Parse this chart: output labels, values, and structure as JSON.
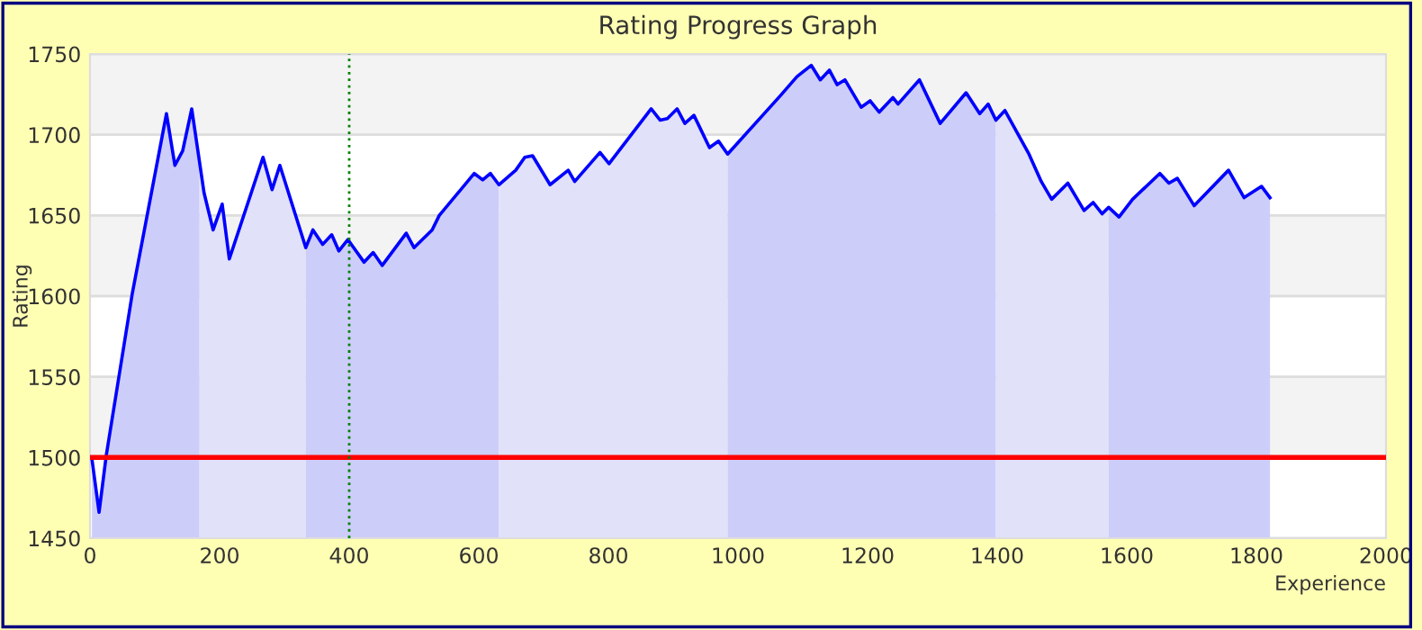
{
  "chart_data": {
    "type": "line",
    "title": "Rating Progress Graph",
    "xlabel": "Experience",
    "ylabel": "Rating",
    "xlim": [
      0,
      2000
    ],
    "xticks": [
      0,
      200,
      400,
      600,
      800,
      1000,
      1200,
      1400,
      1600,
      1800,
      2000
    ],
    "ylim": [
      1450,
      1750
    ],
    "yticks": [
      1450,
      1500,
      1550,
      1600,
      1650,
      1700,
      1750
    ],
    "grid": "y",
    "bands": [
      {
        "axis": "y",
        "from": 1500,
        "to": 1550,
        "color": "#f3f3f3"
      },
      {
        "axis": "y",
        "from": 1600,
        "to": 1650,
        "color": "#f3f3f3"
      },
      {
        "axis": "y",
        "from": 1700,
        "to": 1750,
        "color": "#f3f3f3"
      }
    ],
    "ref_lines": [
      {
        "axis": "y",
        "value": 1500,
        "color": "#ff0000",
        "line_style": "solid"
      },
      {
        "axis": "x",
        "value": 400,
        "color": "#008000",
        "line_style": "dotted"
      }
    ],
    "series": [
      {
        "type": "area",
        "color": "#cdcdfa",
        "x": [
          3,
          14,
          25,
          65,
          118,
          131,
          143,
          157,
          169
        ],
        "values": [
          1499,
          1466,
          1501,
          1601,
          1713,
          1681,
          1690,
          1716,
          1683
        ]
      },
      {
        "type": "area",
        "color": "#e1e1fa",
        "x": [
          169,
          176,
          190,
          204,
          215,
          267,
          281,
          293,
          333
        ],
        "values": [
          1683,
          1664,
          1641,
          1657,
          1623,
          1686,
          1666,
          1681,
          1630
        ]
      },
      {
        "type": "area",
        "color": "#cdcdfa",
        "x": [
          333,
          344,
          359,
          373,
          384,
          398,
          423,
          437,
          451,
          488,
          500,
          528,
          539,
          593,
          606,
          618,
          631
        ],
        "values": [
          1630,
          1641,
          1632,
          1638,
          1628,
          1635,
          1621,
          1627,
          1619,
          1639,
          1630,
          1641,
          1650,
          1676,
          1672,
          1676,
          1669
        ]
      },
      {
        "type": "area",
        "color": "#e1e1fa",
        "x": [
          631,
          657,
          671,
          683,
          710,
          738,
          748,
          787,
          801,
          866,
          880,
          891,
          906,
          918,
          932,
          956,
          970,
          984
        ],
        "values": [
          1669,
          1678,
          1686,
          1687,
          1669,
          1678,
          1671,
          1689,
          1682,
          1716,
          1709,
          1710,
          1716,
          1707,
          1712,
          1692,
          1696,
          1688
        ]
      },
      {
        "type": "area",
        "color": "#cdcdfa",
        "x": [
          984,
          1065,
          1091,
          1113,
          1127,
          1141,
          1153,
          1165,
          1190,
          1204,
          1218,
          1239,
          1247,
          1280,
          1312,
          1352,
          1373,
          1386,
          1398
        ],
        "values": [
          1688,
          1724,
          1736,
          1743,
          1734,
          1740,
          1731,
          1734,
          1717,
          1721,
          1714,
          1723,
          1719,
          1734,
          1707,
          1726,
          1713,
          1719,
          1709
        ]
      },
      {
        "type": "area",
        "color": "#e1e1fa",
        "x": [
          1398,
          1412,
          1449,
          1468,
          1484,
          1509,
          1534,
          1548,
          1562,
          1572
        ],
        "values": [
          1709,
          1715,
          1688,
          1671,
          1660,
          1670,
          1653,
          1658,
          1651,
          1655
        ]
      },
      {
        "type": "area",
        "color": "#cdcdfa",
        "x": [
          1572,
          1588,
          1609,
          1651,
          1665,
          1678,
          1704,
          1757,
          1781,
          1808,
          1821
        ],
        "values": [
          1655,
          1649,
          1660,
          1676,
          1670,
          1673,
          1656,
          1678,
          1661,
          1668,
          1661
        ]
      },
      {
        "color": "#0000ff",
        "x": [
          3,
          14,
          25,
          65,
          118,
          131,
          143,
          157,
          176,
          190,
          204,
          215,
          267,
          281,
          293,
          333,
          344,
          359,
          373,
          384,
          398,
          423,
          437,
          451,
          488,
          500,
          528,
          539,
          593,
          606,
          618,
          631,
          657,
          671,
          683,
          710,
          738,
          748,
          787,
          801,
          866,
          880,
          891,
          906,
          918,
          932,
          956,
          970,
          984,
          1065,
          1091,
          1113,
          1127,
          1141,
          1153,
          1165,
          1190,
          1204,
          1218,
          1239,
          1247,
          1280,
          1312,
          1352,
          1373,
          1386,
          1398,
          1412,
          1449,
          1468,
          1484,
          1509,
          1534,
          1548,
          1562,
          1572,
          1588,
          1609,
          1651,
          1665,
          1678,
          1704,
          1757,
          1781,
          1808,
          1821
        ],
        "values": [
          1499,
          1466,
          1501,
          1601,
          1713,
          1681,
          1690,
          1716,
          1664,
          1641,
          1657,
          1623,
          1686,
          1666,
          1681,
          1630,
          1641,
          1632,
          1638,
          1628,
          1635,
          1621,
          1627,
          1619,
          1639,
          1630,
          1641,
          1650,
          1676,
          1672,
          1676,
          1669,
          1678,
          1686,
          1687,
          1669,
          1678,
          1671,
          1689,
          1682,
          1716,
          1709,
          1710,
          1716,
          1707,
          1712,
          1692,
          1696,
          1688,
          1724,
          1736,
          1743,
          1734,
          1740,
          1731,
          1734,
          1717,
          1721,
          1714,
          1723,
          1719,
          1734,
          1707,
          1726,
          1713,
          1719,
          1709,
          1715,
          1688,
          1671,
          1660,
          1670,
          1653,
          1658,
          1651,
          1655,
          1649,
          1660,
          1676,
          1670,
          1673,
          1656,
          1678,
          1661,
          1668,
          1661
        ]
      }
    ]
  }
}
